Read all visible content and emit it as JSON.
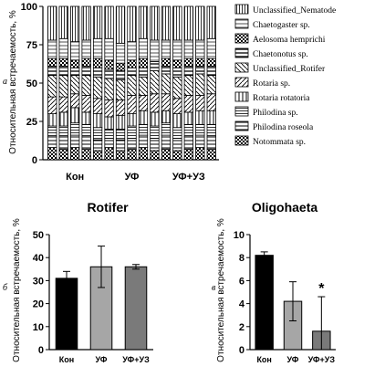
{
  "chart_data": [
    {
      "type": "bar",
      "stacked": true,
      "panel": "а",
      "ylabel": "Относительная встречаемость, %",
      "ylim": [
        0,
        100
      ],
      "yticks": [
        0,
        25,
        50,
        75,
        100
      ],
      "groups": [
        "Кон",
        "УФ",
        "УФ+УЗ"
      ],
      "n_bars": 15,
      "series": [
        {
          "name": "Notommata sp.",
          "values": [
            8,
            7,
            8,
            7,
            6,
            8,
            6,
            7,
            8,
            6,
            7,
            6,
            7,
            8,
            7
          ]
        },
        {
          "name": "Philodina roseola",
          "values": [
            7,
            8,
            8,
            8,
            7,
            6,
            7,
            7,
            8,
            8,
            9,
            8,
            8,
            8,
            8
          ]
        },
        {
          "name": "Philodina sp.",
          "values": [
            7,
            7,
            8,
            8,
            8,
            6,
            7,
            8,
            7,
            8,
            8,
            7,
            8,
            7,
            8
          ]
        },
        {
          "name": "Rotaria rotatoria",
          "values": [
            8,
            9,
            10,
            8,
            9,
            8,
            9,
            8,
            9,
            9,
            8,
            9,
            8,
            9,
            9
          ]
        },
        {
          "name": "Rotaria sp.",
          "values": [
            11,
            10,
            9,
            11,
            10,
            11,
            10,
            12,
            10,
            12,
            11,
            10,
            11,
            10,
            11
          ]
        },
        {
          "name": "Unclassified_Rotifer",
          "values": [
            14,
            14,
            12,
            13,
            14,
            14,
            13,
            13,
            12,
            15,
            13,
            14,
            13,
            14,
            12
          ]
        },
        {
          "name": "Chaetonotus sp.",
          "values": [
            6,
            6,
            5,
            6,
            6,
            6,
            6,
            5,
            6,
            6,
            5,
            6,
            6,
            5,
            6
          ]
        },
        {
          "name": "Aelosoma hemprichi",
          "values": [
            5,
            5,
            5,
            5,
            6,
            6,
            5,
            5,
            6,
            0,
            5,
            5,
            5,
            5,
            5
          ]
        },
        {
          "name": "Chaetogaster sp.",
          "values": [
            12,
            13,
            12,
            12,
            13,
            14,
            13,
            12,
            13,
            14,
            12,
            13,
            12,
            12,
            13
          ]
        },
        {
          "name": "Unclassified_Nematode",
          "values": [
            22,
            21,
            23,
            22,
            21,
            21,
            24,
            23,
            21,
            22,
            22,
            22,
            22,
            22,
            21
          ]
        }
      ]
    },
    {
      "type": "bar",
      "panel": "б",
      "title": "Rotifer",
      "ylabel": "Относительная встречаемость, %",
      "categories": [
        "Кон",
        "УФ",
        "УФ+УЗ"
      ],
      "values": [
        31,
        36,
        36
      ],
      "errors": [
        3,
        9,
        1
      ],
      "colors": [
        "#000000",
        "#a6a6a6",
        "#7a7a7a"
      ],
      "ylim": [
        0,
        50
      ],
      "yticks": [
        0,
        10,
        20,
        30,
        40,
        50
      ]
    },
    {
      "type": "bar",
      "panel": "в",
      "title": "Oligohaeta",
      "ylabel": "Относительная встречаемость, %",
      "categories": [
        "Кон",
        "УФ",
        "УФ+УЗ"
      ],
      "values": [
        8.2,
        4.2,
        1.6
      ],
      "errors": [
        0.3,
        1.7,
        3.0
      ],
      "colors": [
        "#000000",
        "#a6a6a6",
        "#7a7a7a"
      ],
      "ylim": [
        0,
        10
      ],
      "yticks": [
        0,
        2,
        4,
        6,
        8,
        10
      ],
      "annotation": "*"
    }
  ]
}
